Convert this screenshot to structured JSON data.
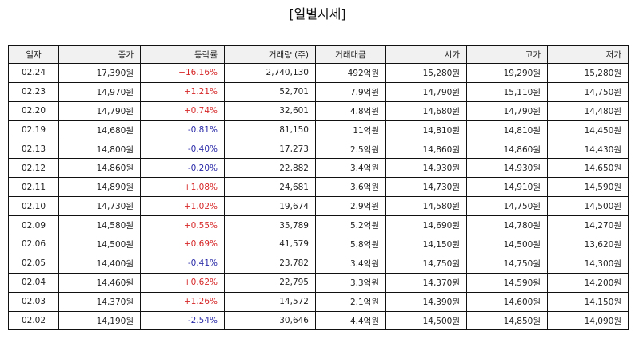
{
  "title": "[일별시세]",
  "columns": [
    "일자",
    "종가",
    "등락률",
    "거래량 (주)",
    "거래대금",
    "시가",
    "고가",
    "저가"
  ],
  "rows": [
    {
      "date": "02.24",
      "close": "17,390원",
      "change": "+16.16%",
      "dir": "up",
      "volume": "2,740,130",
      "amount": "492억원",
      "open": "15,280원",
      "high": "19,290원",
      "low": "15,280원"
    },
    {
      "date": "02.23",
      "close": "14,970원",
      "change": "+1.21%",
      "dir": "up",
      "volume": "52,701",
      "amount": "7.9억원",
      "open": "14,790원",
      "high": "15,110원",
      "low": "14,750원"
    },
    {
      "date": "02.20",
      "close": "14,790원",
      "change": "+0.74%",
      "dir": "up",
      "volume": "32,601",
      "amount": "4.8억원",
      "open": "14,680원",
      "high": "14,790원",
      "low": "14,480원"
    },
    {
      "date": "02.19",
      "close": "14,680원",
      "change": "-0.81%",
      "dir": "down",
      "volume": "81,150",
      "amount": "11억원",
      "open": "14,810원",
      "high": "14,810원",
      "low": "14,450원"
    },
    {
      "date": "02.13",
      "close": "14,800원",
      "change": "-0.40%",
      "dir": "down",
      "volume": "17,273",
      "amount": "2.5억원",
      "open": "14,860원",
      "high": "14,860원",
      "low": "14,430원"
    },
    {
      "date": "02.12",
      "close": "14,860원",
      "change": "-0.20%",
      "dir": "down",
      "volume": "22,882",
      "amount": "3.4억원",
      "open": "14,930원",
      "high": "14,930원",
      "low": "14,650원"
    },
    {
      "date": "02.11",
      "close": "14,890원",
      "change": "+1.08%",
      "dir": "up",
      "volume": "24,681",
      "amount": "3.6억원",
      "open": "14,730원",
      "high": "14,910원",
      "low": "14,590원"
    },
    {
      "date": "02.10",
      "close": "14,730원",
      "change": "+1.02%",
      "dir": "up",
      "volume": "19,674",
      "amount": "2.9억원",
      "open": "14,580원",
      "high": "14,750원",
      "low": "14,500원"
    },
    {
      "date": "02.09",
      "close": "14,580원",
      "change": "+0.55%",
      "dir": "up",
      "volume": "35,789",
      "amount": "5.2억원",
      "open": "14,690원",
      "high": "14,780원",
      "low": "14,270원"
    },
    {
      "date": "02.06",
      "close": "14,500원",
      "change": "+0.69%",
      "dir": "up",
      "volume": "41,579",
      "amount": "5.8억원",
      "open": "14,150원",
      "high": "14,500원",
      "low": "13,620원"
    },
    {
      "date": "02.05",
      "close": "14,400원",
      "change": "-0.41%",
      "dir": "down",
      "volume": "23,782",
      "amount": "3.4억원",
      "open": "14,750원",
      "high": "14,750원",
      "low": "14,300원"
    },
    {
      "date": "02.04",
      "close": "14,460원",
      "change": "+0.62%",
      "dir": "up",
      "volume": "22,795",
      "amount": "3.3억원",
      "open": "14,370원",
      "high": "14,590원",
      "low": "14,200원"
    },
    {
      "date": "02.03",
      "close": "14,370원",
      "change": "+1.26%",
      "dir": "up",
      "volume": "14,572",
      "amount": "2.1억원",
      "open": "14,390원",
      "high": "14,600원",
      "low": "14,150원"
    },
    {
      "date": "02.02",
      "close": "14,190원",
      "change": "-2.54%",
      "dir": "down",
      "volume": "30,646",
      "amount": "4.4억원",
      "open": "14,500원",
      "high": "14,850원",
      "low": "14,090원"
    }
  ],
  "colors": {
    "up": "#d62728",
    "down": "#2a2aa8",
    "header_bg": "#f1f1f1",
    "border": "#111111"
  }
}
